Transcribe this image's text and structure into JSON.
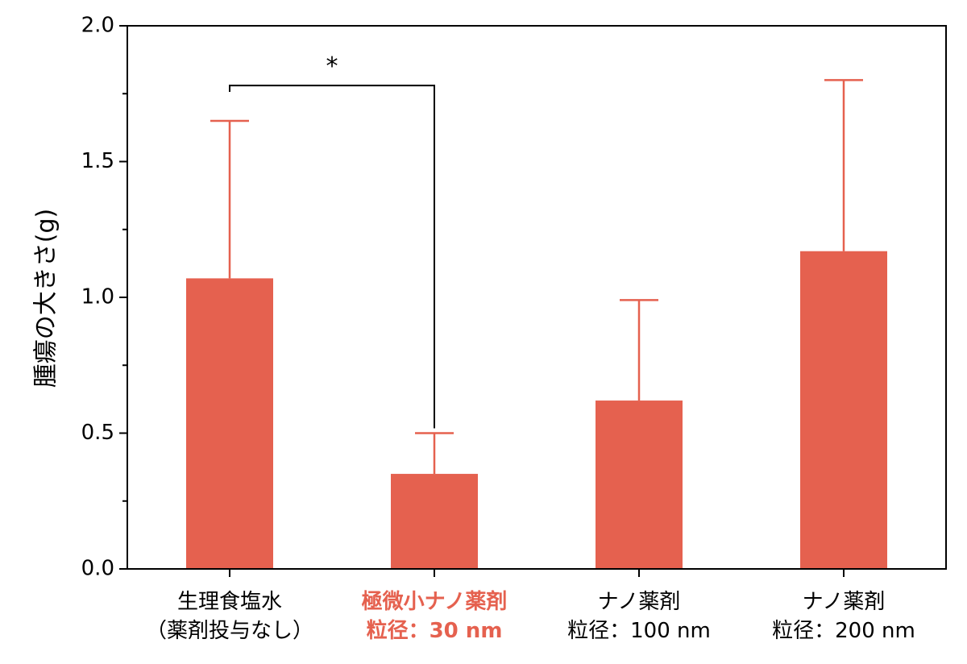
{
  "chart_data": {
    "type": "bar",
    "title": "",
    "xlabel": "",
    "ylabel": "腫瘍の大きさ(g)",
    "ylim": [
      0,
      2.0
    ],
    "yticks": [
      {
        "value": 0.0,
        "label": "0.0"
      },
      {
        "value": 0.5,
        "label": "0.5"
      },
      {
        "value": 1.0,
        "label": "1.0"
      },
      {
        "value": 1.5,
        "label": "1.5"
      },
      {
        "value": 2.0,
        "label": "2.0"
      }
    ],
    "y_minor_step": 0.25,
    "grid": false,
    "bar_color": "#E5614F",
    "highlight_color": "#E5614F",
    "categories": [
      {
        "lines": [
          "生理食塩水",
          "（薬剤投与なし）"
        ],
        "highlight": false
      },
      {
        "lines": [
          "極微小ナノ薬剤",
          "粒径：30 nm"
        ],
        "highlight": true
      },
      {
        "lines": [
          "ナノ薬剤",
          "粒径：100 nm"
        ],
        "highlight": false
      },
      {
        "lines": [
          "ナノ薬剤",
          "粒径：200 nm"
        ],
        "highlight": false
      }
    ],
    "values": [
      1.07,
      0.35,
      0.62,
      1.17
    ],
    "error_upper": [
      1.65,
      0.5,
      0.99,
      1.8
    ],
    "significance": [
      {
        "from": 0,
        "to": 1,
        "label": "*",
        "y": 1.78
      }
    ]
  }
}
